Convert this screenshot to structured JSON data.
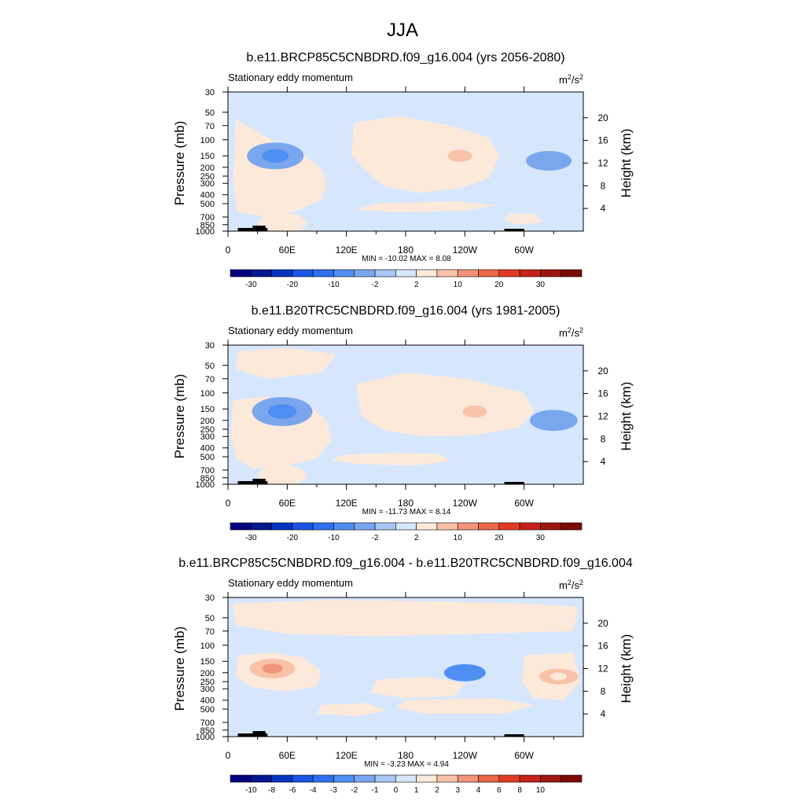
{
  "page_title": "JJA",
  "chart_data": [
    {
      "type": "contour",
      "title": "b.e11.BRCP85C5CNBDRD.f09_g16.004 (yrs 2056-2080)",
      "left_string": "Stationary eddy momentum",
      "units_base": "m",
      "units_exp": "2",
      "units_tail": "/s",
      "units_tail_exp": "2",
      "xlabel": "",
      "ylabel": "Pressure (mb)",
      "y2label": "Height (km)",
      "x_ticks": [
        "0",
        "60E",
        "120E",
        "180",
        "120W",
        "60W"
      ],
      "x_tick_values": [
        0,
        60,
        120,
        180,
        240,
        300
      ],
      "xlim": [
        0,
        360
      ],
      "y_ticks": [
        "30",
        "50",
        "70",
        "100",
        "150",
        "200",
        "250",
        "300",
        "400",
        "500",
        "700",
        "850",
        "1000"
      ],
      "y_tick_values": [
        30,
        50,
        70,
        100,
        150,
        200,
        250,
        300,
        400,
        500,
        700,
        850,
        1000
      ],
      "ylim": [
        1000,
        30
      ],
      "y2_ticks": [
        "4",
        "8",
        "12",
        "16",
        "20"
      ],
      "y2_tick_values": [
        4,
        8,
        12,
        16,
        20
      ],
      "stats": "MIN = -10.02  MAX =   8.08",
      "min": -10.02,
      "max": 8.08,
      "colorbar_labels": [
        "-30",
        "-20",
        "-10",
        "-2",
        "2",
        "10",
        "20",
        "30"
      ],
      "colorbar_levels": [
        -35,
        -30,
        -25,
        -20,
        -15,
        -10,
        -6,
        -2,
        0,
        2,
        6,
        10,
        15,
        20,
        25,
        30,
        35
      ],
      "features": [
        {
          "sign": "negative",
          "lon": 48,
          "p": 150,
          "peak": -10.02
        },
        {
          "sign": "positive",
          "lon": 235,
          "p": 150,
          "peak": 8.08
        },
        {
          "sign": "negative",
          "lon": 325,
          "p": 170,
          "peak": -5
        },
        {
          "sign": "positive",
          "lon": 55,
          "p": 820,
          "peak": 6
        }
      ]
    },
    {
      "type": "contour",
      "title": "b.e11.B20TRC5CNBDRD.f09_g16.004 (yrs 1981-2005)",
      "left_string": "Stationary eddy momentum",
      "units_base": "m",
      "units_exp": "2",
      "units_tail": "/s",
      "units_tail_exp": "2",
      "xlabel": "",
      "ylabel": "Pressure (mb)",
      "y2label": "Height (km)",
      "x_ticks": [
        "0",
        "60E",
        "120E",
        "180",
        "120W",
        "60W"
      ],
      "x_tick_values": [
        0,
        60,
        120,
        180,
        240,
        300
      ],
      "xlim": [
        0,
        360
      ],
      "y_ticks": [
        "30",
        "50",
        "70",
        "100",
        "150",
        "200",
        "250",
        "300",
        "400",
        "500",
        "700",
        "850",
        "1000"
      ],
      "y_tick_values": [
        30,
        50,
        70,
        100,
        150,
        200,
        250,
        300,
        400,
        500,
        700,
        850,
        1000
      ],
      "ylim": [
        1000,
        30
      ],
      "y2_ticks": [
        "4",
        "8",
        "12",
        "16",
        "20"
      ],
      "y2_tick_values": [
        4,
        8,
        12,
        16,
        20
      ],
      "stats": "MIN = -11.73  MAX =   8.14",
      "min": -11.73,
      "max": 8.14,
      "colorbar_labels": [
        "-30",
        "-20",
        "-10",
        "-2",
        "2",
        "10",
        "20",
        "30"
      ],
      "colorbar_levels": [
        -35,
        -30,
        -25,
        -20,
        -15,
        -10,
        -6,
        -2,
        0,
        2,
        6,
        10,
        15,
        20,
        25,
        30,
        35
      ],
      "features": [
        {
          "sign": "negative",
          "lon": 55,
          "p": 160,
          "peak": -11.73
        },
        {
          "sign": "positive",
          "lon": 250,
          "p": 160,
          "peak": 8.14
        },
        {
          "sign": "negative",
          "lon": 330,
          "p": 200,
          "peak": -6
        },
        {
          "sign": "positive",
          "lon": 55,
          "p": 800,
          "peak": 6
        }
      ]
    },
    {
      "type": "contour",
      "title": "b.e11.BRCP85C5CNBDRD.f09_g16.004 - b.e11.B20TRC5CNBDRD.f09_g16.004",
      "left_string": "Stationary eddy momentum",
      "units_base": "m",
      "units_exp": "2",
      "units_tail": "/s",
      "units_tail_exp": "2",
      "xlabel": "",
      "ylabel": "Pressure (mb)",
      "y2label": "Height (km)",
      "x_ticks": [
        "0",
        "60E",
        "120E",
        "180",
        "120W",
        "60W"
      ],
      "x_tick_values": [
        0,
        60,
        120,
        180,
        240,
        300
      ],
      "xlim": [
        0,
        360
      ],
      "y_ticks": [
        "30",
        "50",
        "70",
        "100",
        "150",
        "200",
        "250",
        "300",
        "400",
        "500",
        "700",
        "850",
        "1000"
      ],
      "y_tick_values": [
        30,
        50,
        70,
        100,
        150,
        200,
        250,
        300,
        400,
        500,
        700,
        850,
        1000
      ],
      "ylim": [
        1000,
        30
      ],
      "y2_ticks": [
        "4",
        "8",
        "12",
        "16",
        "20"
      ],
      "y2_tick_values": [
        4,
        8,
        12,
        16,
        20
      ],
      "stats": "MIN = -3.23  MAX =   4.94",
      "min": -3.23,
      "max": 4.94,
      "colorbar_labels": [
        "-10",
        "-8",
        "-6",
        "-4",
        "-3",
        "-2",
        "-1",
        "0",
        "1",
        "2",
        "3",
        "4",
        "6",
        "8",
        "10"
      ],
      "colorbar_levels": [
        -12,
        -10,
        -8,
        -6,
        -4,
        -3,
        -2,
        -1,
        0,
        1,
        2,
        3,
        4,
        6,
        8,
        10,
        12
      ],
      "features": [
        {
          "sign": "positive",
          "lon": 45,
          "p": 180,
          "peak": 4.94
        },
        {
          "sign": "negative",
          "lon": 240,
          "p": 200,
          "peak": -3.23
        },
        {
          "sign": "positive",
          "lon": 335,
          "p": 220,
          "peak": 2
        }
      ]
    }
  ],
  "colors": {
    "colormap": [
      "#00007f",
      "#001890",
      "#0335c1",
      "#1a56e6",
      "#2f70f0",
      "#4f8ef2",
      "#7aa6ee",
      "#a9c6f4",
      "#d6e7fd",
      "#fde9da",
      "#f8c1a8",
      "#f2937a",
      "#ea6748",
      "#e33b22",
      "#c5221b",
      "#9c1712",
      "#7d0a05"
    ],
    "negative_fill": "#d6e7fd",
    "positive_fill": "#fde9da",
    "land": "#000000",
    "axis": "#000000"
  }
}
